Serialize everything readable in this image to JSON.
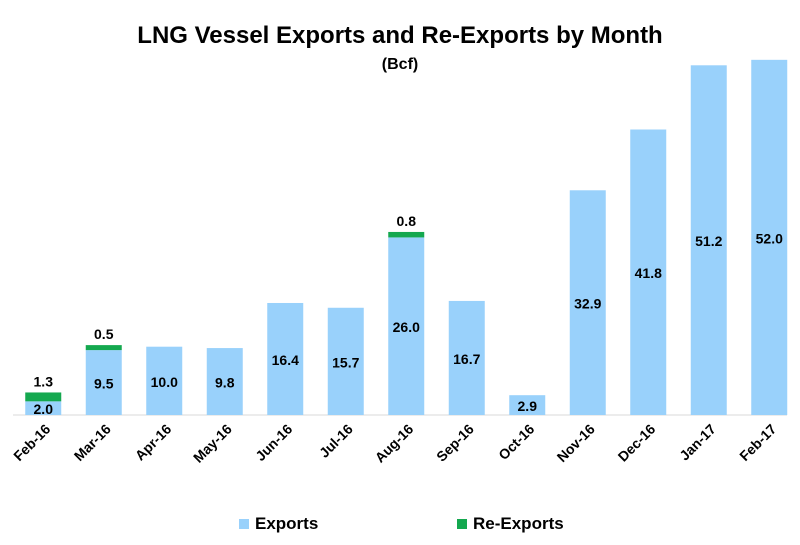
{
  "chart_data": {
    "type": "bar",
    "stacked": true,
    "title": "LNG Vessel Exports and Re-Exports by Month",
    "subtitle": "(Bcf)",
    "categories": [
      "Feb-16",
      "Mar-16",
      "Apr-16",
      "May-16",
      "Jun-16",
      "Jul-16",
      "Aug-16",
      "Sep-16",
      "Oct-16",
      "Nov-16",
      "Dec-16",
      "Jan-17",
      "Feb-17"
    ],
    "series": [
      {
        "name": "Exports",
        "color": "#99d1fb",
        "values": [
          2.0,
          9.5,
          10.0,
          9.8,
          16.4,
          15.7,
          26.0,
          16.7,
          2.9,
          32.9,
          41.8,
          51.2,
          52.0
        ],
        "labels": [
          "2.0",
          "9.5",
          "10.0",
          "9.8",
          "16.4",
          "15.7",
          "26.0",
          "16.7",
          "2.9",
          "32.9",
          "41.8",
          "51.2",
          "52.0"
        ]
      },
      {
        "name": "Re-Exports",
        "color": "#14a84f",
        "values": [
          1.3,
          0.5,
          null,
          null,
          null,
          null,
          0.8,
          null,
          null,
          null,
          null,
          null,
          null
        ],
        "labels": [
          "1.3",
          "0.5",
          null,
          null,
          null,
          null,
          "0.8",
          null,
          null,
          null,
          null,
          null,
          null
        ]
      }
    ],
    "ylim": [
      0,
      53
    ],
    "grid": false,
    "legend": "bottom"
  }
}
